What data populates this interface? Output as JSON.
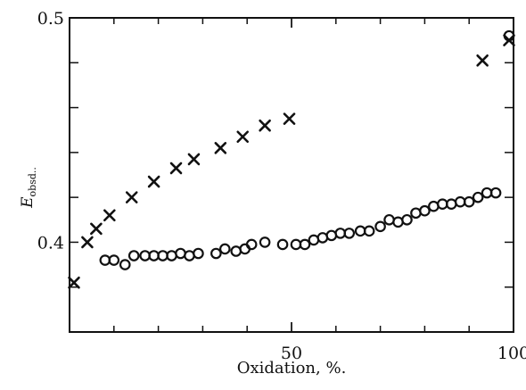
{
  "chart_data": {
    "type": "scatter",
    "title": "",
    "xlabel": "Oxidation, %.",
    "ylabel": {
      "main": "E",
      "sub": "obsd.."
    },
    "xlim": [
      0,
      100
    ],
    "ylim": [
      0.36,
      0.5
    ],
    "x_tick_labels": [
      {
        "value": 50,
        "label": "50"
      },
      {
        "value": 100,
        "label": "100"
      }
    ],
    "y_tick_labels": [
      {
        "value": 0.4,
        "label": "0.4"
      },
      {
        "value": 0.5,
        "label": "0.5"
      }
    ],
    "x_ticks": [
      10,
      20,
      30,
      40,
      50,
      60,
      70,
      80,
      90
    ],
    "y_ticks": [
      0.38,
      0.4,
      0.42,
      0.44,
      0.46,
      0.48
    ],
    "grid": false,
    "series": [
      {
        "marker": "cross",
        "points": [
          [
            1,
            0.382
          ],
          [
            4,
            0.4
          ],
          [
            6,
            0.406
          ],
          [
            9,
            0.412
          ],
          [
            14,
            0.42
          ],
          [
            19,
            0.427
          ],
          [
            24,
            0.433
          ],
          [
            28,
            0.437
          ],
          [
            34,
            0.442
          ],
          [
            39,
            0.447
          ],
          [
            44,
            0.452
          ],
          [
            49.5,
            0.455
          ],
          [
            93,
            0.481
          ],
          [
            99,
            0.49
          ]
        ]
      },
      {
        "marker": "circle",
        "points": [
          [
            8,
            0.392
          ],
          [
            10,
            0.392
          ],
          [
            12.5,
            0.39
          ],
          [
            14.5,
            0.394
          ],
          [
            17,
            0.394
          ],
          [
            19,
            0.394
          ],
          [
            21,
            0.394
          ],
          [
            23,
            0.394
          ],
          [
            25,
            0.395
          ],
          [
            27,
            0.394
          ],
          [
            29,
            0.395
          ],
          [
            33,
            0.395
          ],
          [
            35,
            0.397
          ],
          [
            37.5,
            0.396
          ],
          [
            39.5,
            0.397
          ],
          [
            41,
            0.399
          ],
          [
            44,
            0.4
          ],
          [
            48,
            0.399
          ],
          [
            51,
            0.399
          ],
          [
            53,
            0.399
          ],
          [
            55,
            0.401
          ],
          [
            57,
            0.402
          ],
          [
            59,
            0.403
          ],
          [
            61,
            0.404
          ],
          [
            63,
            0.404
          ],
          [
            65.5,
            0.405
          ],
          [
            67.5,
            0.405
          ],
          [
            70,
            0.407
          ],
          [
            72,
            0.41
          ],
          [
            74,
            0.409
          ],
          [
            76,
            0.41
          ],
          [
            78,
            0.413
          ],
          [
            80,
            0.414
          ],
          [
            82,
            0.416
          ],
          [
            84,
            0.417
          ],
          [
            86,
            0.417
          ],
          [
            88,
            0.418
          ],
          [
            90,
            0.418
          ],
          [
            92,
            0.42
          ],
          [
            94,
            0.422
          ],
          [
            96,
            0.422
          ],
          [
            99,
            0.492
          ]
        ]
      }
    ]
  }
}
